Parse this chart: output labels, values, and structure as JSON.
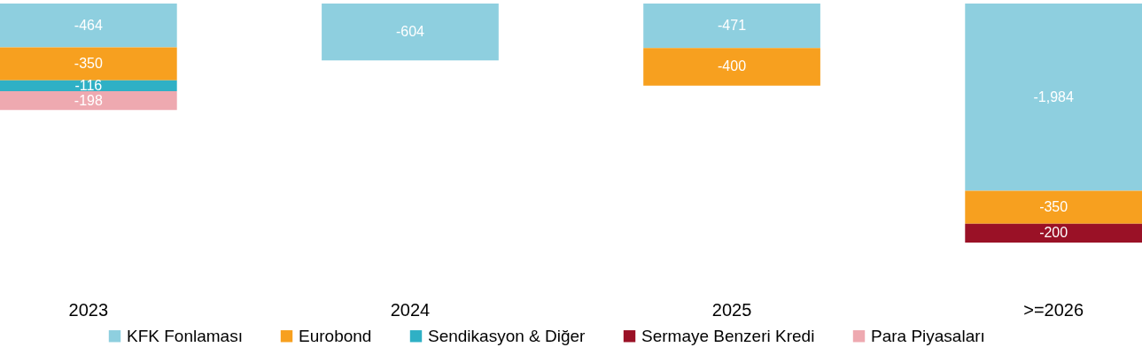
{
  "chart_data": {
    "type": "bar",
    "stacked": true,
    "categories": [
      "2023",
      "2024",
      "2025",
      ">=2026"
    ],
    "series": [
      {
        "name": "KFK Fonlaması",
        "color": "#8ecfdf",
        "values": [
          -464,
          -604,
          -471,
          -1984
        ],
        "value_labels": [
          "-464",
          "-604",
          "-471",
          "-1,984"
        ]
      },
      {
        "name": "Eurobond",
        "color": "#f7a01f",
        "values": [
          -350,
          null,
          -400,
          -350
        ],
        "value_labels": [
          "-350",
          null,
          "-400",
          "-350"
        ]
      },
      {
        "name": "Sendikasyon & Diğer",
        "color": "#2fb0c5",
        "values": [
          -116,
          null,
          null,
          null
        ],
        "value_labels": [
          "-116",
          null,
          null,
          null
        ]
      },
      {
        "name": "Sermaye Benzeri Kredi",
        "color": "#9a1126",
        "values": [
          null,
          null,
          null,
          -200
        ],
        "value_labels": [
          null,
          null,
          null,
          "-200"
        ]
      },
      {
        "name": "Para Piyasaları",
        "color": "#eea9b0",
        "values": [
          -198,
          null,
          null,
          null
        ],
        "value_labels": [
          "-198",
          null,
          null,
          null
        ]
      }
    ],
    "tick_labels": "x",
    "grid": false,
    "legend": "bottom"
  }
}
